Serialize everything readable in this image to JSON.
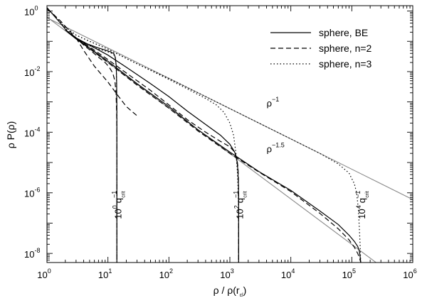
{
  "chart_data": {
    "type": "line",
    "xlabel": "ρ / ρ(r",
    "xlabel_sub": "cl",
    "xlabel_end": ")",
    "ylabel": "ρ P(ρ)",
    "xscale": "log",
    "yscale": "log",
    "xlim": [
      1,
      1000000
    ],
    "ylim": [
      5e-09,
      1.5
    ],
    "x_ticks": [
      {
        "base": "10",
        "exp": "0",
        "value": 1
      },
      {
        "base": "10",
        "exp": "1",
        "value": 10
      },
      {
        "base": "10",
        "exp": "2",
        "value": 100
      },
      {
        "base": "10",
        "exp": "3",
        "value": 1000
      },
      {
        "base": "10",
        "exp": "4",
        "value": 10000
      },
      {
        "base": "10",
        "exp": "5",
        "value": 100000
      },
      {
        "base": "10",
        "exp": "6",
        "value": 1000000
      }
    ],
    "y_ticks": [
      {
        "base": "10",
        "exp": "0",
        "value": 1
      },
      {
        "base": "10",
        "exp": "-2",
        "value": 0.01
      },
      {
        "base": "10",
        "exp": "-4",
        "value": 0.0001
      },
      {
        "base": "10",
        "exp": "-6",
        "value": 1e-06
      },
      {
        "base": "10",
        "exp": "-8",
        "value": 1e-08
      }
    ],
    "legend": {
      "position": "top-right",
      "entries": [
        {
          "label": "sphere, BE",
          "style": "solid"
        },
        {
          "label": "sphere, n=2",
          "style": "dashed"
        },
        {
          "label": "sphere, n=3",
          "style": "dotted"
        }
      ]
    },
    "reference_lines": [
      {
        "name": "rho^-1",
        "label_base": "ρ",
        "label_exp": "−1",
        "slope": -1,
        "x": [
          1,
          1000000
        ],
        "y": [
          0.6,
          6e-07
        ],
        "label_at": [
          4000,
          0.0007
        ],
        "color": "#888888"
      },
      {
        "name": "rho^-1.5",
        "label_base": "ρ",
        "label_exp": "−1.5",
        "slope": -1.5,
        "x": [
          1,
          300000
        ],
        "y": [
          0.63,
          3.8e-09
        ],
        "label_at": [
          4000,
          2.2e-05
        ],
        "color": "#888888"
      }
    ],
    "series": [
      {
        "name": "sphere, BE",
        "q": 1,
        "style": "solid",
        "x": [
          1,
          1.3,
          1.7,
          2.2,
          3,
          4,
          5.5,
          7,
          9,
          11,
          12.5,
          13.2,
          13.7,
          13.9,
          14,
          14,
          14
        ],
        "y": [
          1.3,
          0.7,
          0.38,
          0.2,
          0.12,
          0.09,
          0.072,
          0.06,
          0.052,
          0.045,
          0.039,
          0.03,
          0.015,
          0.004,
          0.0006,
          1e-05,
          5e-09
        ]
      },
      {
        "name": "sphere, n=2",
        "q": 1,
        "style": "dashed",
        "x": [
          1,
          1.3,
          1.7,
          2.2,
          3,
          4,
          5.5,
          7,
          9,
          10.5,
          12,
          13,
          13.6,
          13.9,
          14,
          14,
          14
        ],
        "y": [
          1.15,
          0.75,
          0.45,
          0.25,
          0.13,
          0.075,
          0.045,
          0.03,
          0.02,
          0.014,
          0.009,
          0.005,
          0.002,
          0.0004,
          5e-05,
          1e-06,
          5e-09
        ]
      },
      {
        "name": "sphere, n=2",
        "q": 1,
        "style": "dashed",
        "x": [
          3,
          4,
          6,
          10,
          15,
          20,
          30
        ],
        "y": [
          0.13,
          0.05,
          0.015,
          0.0045,
          0.0015,
          0.0007,
          0.00035
        ]
      },
      {
        "name": "sphere, n=3",
        "q": 1,
        "style": "dotted",
        "x": [
          1,
          1.3,
          1.7,
          2.2,
          3,
          4,
          5.5,
          7,
          9,
          11,
          12.5,
          13.2,
          13.7,
          13.9,
          14,
          14,
          14
        ],
        "y": [
          1.25,
          0.75,
          0.42,
          0.22,
          0.13,
          0.085,
          0.065,
          0.055,
          0.048,
          0.042,
          0.036,
          0.028,
          0.013,
          0.003,
          0.0005,
          1e-05,
          5e-09
        ]
      },
      {
        "name": "sphere, BE",
        "q": 100,
        "style": "solid",
        "x": [
          2,
          3,
          5,
          10,
          20,
          50,
          100,
          200,
          400,
          700,
          1000,
          1200,
          1300,
          1350,
          1380,
          1390,
          1390
        ],
        "y": [
          0.24,
          0.13,
          0.075,
          0.035,
          0.014,
          0.004,
          0.0015,
          0.0005,
          0.00018,
          8e-05,
          4e-05,
          2.2e-05,
          1.2e-05,
          6e-06,
          2e-06,
          5e-07,
          5e-09
        ]
      },
      {
        "name": "sphere, n=2",
        "q": 100,
        "style": "dashed",
        "x": [
          2,
          3,
          5,
          10,
          20,
          50,
          100,
          200,
          400,
          700,
          1000,
          1200,
          1300,
          1360,
          1380,
          1390,
          1390
        ],
        "y": [
          0.24,
          0.13,
          0.065,
          0.025,
          0.009,
          0.0024,
          0.0008,
          0.00026,
          0.0001,
          5e-05,
          3.3e-05,
          2.2e-05,
          1.4e-05,
          7e-06,
          3e-06,
          5e-07,
          5e-09
        ]
      },
      {
        "name": "sphere, n=3",
        "q": 100,
        "style": "dotted",
        "x": [
          2,
          3,
          5,
          10,
          20,
          50,
          100,
          200,
          400,
          600,
          800,
          1000,
          1150,
          1260,
          1330,
          1370,
          1390,
          1390
        ],
        "y": [
          0.3,
          0.16,
          0.1,
          0.055,
          0.027,
          0.011,
          0.0055,
          0.0027,
          0.0013,
          0.0008,
          0.00045,
          0.0002,
          8e-05,
          2e-05,
          5e-06,
          1e-06,
          2e-07,
          5e-09
        ]
      },
      {
        "name": "sphere, BE",
        "q": 10000,
        "style": "solid",
        "x": [
          2,
          3,
          5,
          10,
          30,
          100,
          300,
          1000,
          3000,
          10000,
          30000,
          60000,
          90000,
          110000,
          125000,
          133000,
          137000,
          139000,
          140000
        ],
        "y": [
          0.24,
          0.12,
          0.06,
          0.022,
          0.004,
          0.0007,
          0.00012,
          2.2e-05,
          5e-06,
          1.2e-06,
          2.5e-07,
          9e-08,
          4e-08,
          2.5e-08,
          1.7e-08,
          1.2e-08,
          8e-09,
          6e-09,
          5e-09
        ]
      },
      {
        "name": "sphere, n=2",
        "q": 10000,
        "style": "dashed",
        "x": [
          2,
          3,
          5,
          10,
          30,
          100,
          300,
          1000,
          3000,
          10000,
          30000,
          60000,
          90000,
          110000,
          125000,
          133000,
          137000,
          140000
        ],
        "y": [
          0.24,
          0.12,
          0.058,
          0.02,
          0.0036,
          0.00062,
          0.00011,
          2e-05,
          4.8e-06,
          1.1e-06,
          2.1e-07,
          6.5e-08,
          2.8e-08,
          1.6e-08,
          1e-08,
          7.5e-09,
          6e-09,
          5e-09
        ]
      },
      {
        "name": "sphere, n=3",
        "q": 10000,
        "style": "dotted",
        "x": [
          2,
          3,
          5,
          10,
          30,
          100,
          300,
          1000,
          3000,
          10000,
          30000,
          60000,
          90000,
          110000,
          120000,
          128000,
          133000,
          137000,
          139000,
          140000
        ],
        "y": [
          0.3,
          0.16,
          0.1,
          0.055,
          0.018,
          0.006,
          0.002,
          0.0006,
          0.0002,
          6e-05,
          2e-05,
          9e-06,
          4.5e-06,
          2e-06,
          1e-06,
          3e-07,
          7e-08,
          2e-08,
          8e-09,
          5e-09
        ]
      }
    ],
    "annotations": [
      {
        "name": "qcrit-1",
        "base": "10",
        "exp": "0",
        "q": "q",
        "q_sup": "−1",
        "q_sub": "crit",
        "x": 16.5,
        "y": 4e-07
      },
      {
        "name": "qcrit-100",
        "base": "10",
        "exp": "2",
        "q": "q",
        "q_sup": "−1",
        "q_sub": "crit",
        "x": 1650,
        "y": 4e-07
      },
      {
        "name": "qcrit-10000",
        "base": "10",
        "exp": "4",
        "q": "q",
        "q_sup": "−1",
        "q_sub": "crit",
        "x": 165000,
        "y": 4e-07
      }
    ],
    "colors": {
      "curve": "#000000",
      "reference": "#888888",
      "axis": "#000000"
    }
  }
}
